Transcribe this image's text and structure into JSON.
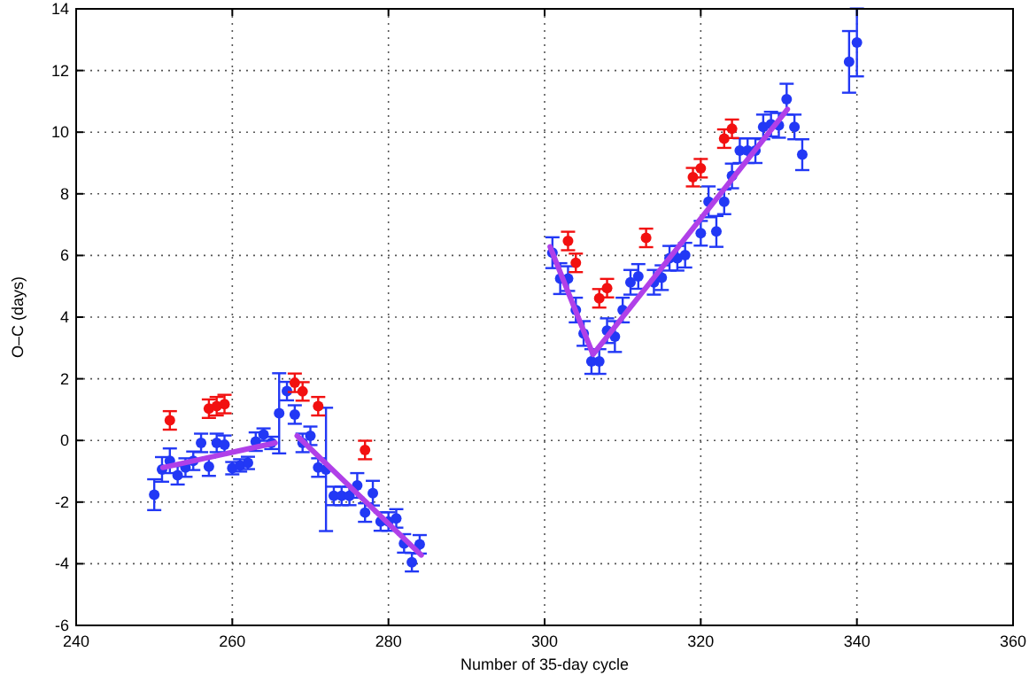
{
  "chart_data": {
    "type": "scatter",
    "xlabel": "Number of 35-day cycle",
    "ylabel": "O–C (days)",
    "xlim": [
      240,
      360
    ],
    "xticks": [
      240,
      260,
      280,
      300,
      320,
      340,
      360
    ],
    "ylim": [
      -6,
      14
    ],
    "yticks": [
      -6,
      -4,
      -2,
      0,
      2,
      4,
      6,
      8,
      10,
      12,
      14
    ],
    "grid": true,
    "marker": "circle",
    "series": [
      {
        "color": "#2238f5",
        "x": [
          250,
          251,
          252,
          253,
          254,
          255,
          256,
          257,
          258,
          259,
          260,
          261,
          262,
          263,
          264,
          265,
          266,
          267,
          268,
          269,
          270,
          271,
          272,
          273,
          274,
          275,
          276,
          277,
          278,
          279,
          280,
          281,
          282,
          283,
          284,
          301,
          302,
          303,
          304,
          305,
          306,
          307,
          308,
          309,
          310,
          311,
          312,
          314,
          315,
          316,
          317,
          318,
          320,
          321,
          322,
          323,
          324,
          325,
          326,
          327,
          328,
          329,
          330,
          331,
          332,
          333,
          339,
          340
        ],
        "values": [
          -1.76,
          -0.94,
          -0.66,
          -1.13,
          -0.88,
          -0.66,
          -0.08,
          -0.85,
          -0.08,
          -0.14,
          -0.9,
          -0.81,
          -0.73,
          -0.04,
          0.19,
          -0.08,
          0.88,
          1.6,
          0.84,
          -0.08,
          0.15,
          -0.88,
          -0.94,
          -1.8,
          -1.8,
          -1.8,
          -1.46,
          -2.34,
          -1.71,
          -2.63,
          -2.63,
          -2.53,
          -3.34,
          -3.95,
          -3.37,
          6.09,
          5.25,
          5.25,
          4.23,
          3.47,
          2.56,
          2.56,
          3.56,
          3.37,
          4.23,
          5.13,
          5.32,
          5.13,
          5.28,
          5.91,
          5.91,
          6.01,
          6.72,
          7.74,
          6.78,
          7.74,
          8.58,
          9.4,
          9.4,
          9.4,
          10.17,
          10.26,
          10.22,
          11.07,
          10.17,
          9.27,
          12.28,
          12.91
        ],
        "errors": [
          0.5,
          0.4,
          0.4,
          0.3,
          0.3,
          0.3,
          0.3,
          0.3,
          0.3,
          0.3,
          0.2,
          0.2,
          0.2,
          0.3,
          0.2,
          0.2,
          1.3,
          0.3,
          0.3,
          0.3,
          0.3,
          0.3,
          2.0,
          0.3,
          0.3,
          0.3,
          0.4,
          0.3,
          0.4,
          0.3,
          0.3,
          0.3,
          0.3,
          0.3,
          0.3,
          0.5,
          0.5,
          0.4,
          0.4,
          0.4,
          0.4,
          0.4,
          0.4,
          0.5,
          0.4,
          0.4,
          0.4,
          0.4,
          0.4,
          0.4,
          0.4,
          0.4,
          0.4,
          0.5,
          0.5,
          0.4,
          0.4,
          0.4,
          0.4,
          0.4,
          0.4,
          0.4,
          0.4,
          0.5,
          0.4,
          0.5,
          1.0,
          1.1
        ]
      },
      {
        "color": "#f21010",
        "x": [
          252,
          257,
          258,
          259,
          268,
          269,
          271,
          277,
          303,
          304,
          307,
          308,
          313,
          319,
          320,
          323,
          324
        ],
        "values": [
          0.65,
          1.03,
          1.11,
          1.18,
          1.87,
          1.59,
          1.11,
          -0.31,
          6.47,
          5.76,
          4.61,
          4.94,
          6.57,
          8.54,
          8.83,
          9.79,
          10.11
        ],
        "errors": [
          0.3,
          0.3,
          0.3,
          0.3,
          0.3,
          0.3,
          0.3,
          0.3,
          0.3,
          0.3,
          0.3,
          0.3,
          0.3,
          0.3,
          0.3,
          0.3,
          0.3
        ]
      },
      {
        "type": "line",
        "color": "#b040e8",
        "line_style": "solid",
        "marker": "none",
        "x": [
          251.1,
          265.5
        ],
        "values": [
          -0.88,
          -0.08
        ]
      },
      {
        "type": "line",
        "color": "#b040e8",
        "line_style": "solid",
        "marker": "none",
        "x": [
          268.3,
          284.2
        ],
        "values": [
          0.15,
          -3.72
        ]
      },
      {
        "type": "line",
        "color": "#b040e8",
        "line_style": "solid",
        "marker": "none",
        "x": [
          300.7,
          306.2,
          331.1
        ],
        "values": [
          6.28,
          2.79,
          10.74
        ]
      }
    ]
  }
}
